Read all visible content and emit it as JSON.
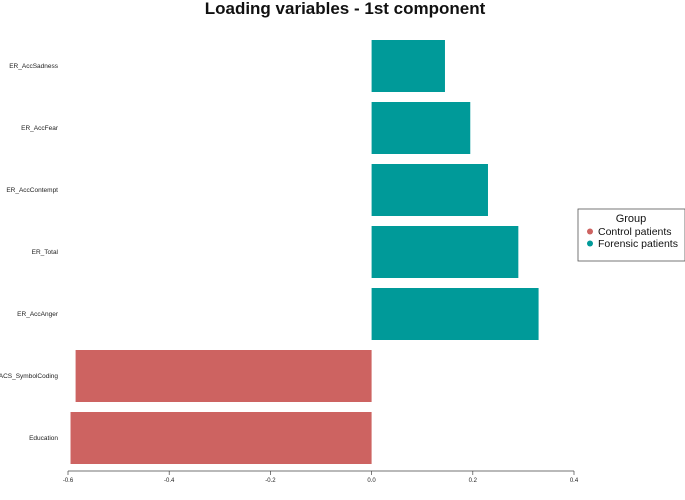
{
  "chart_data": {
    "type": "bar",
    "orientation": "horizontal",
    "title": "Loading variables - 1st component",
    "xlabel": "",
    "ylabel": "",
    "categories": [
      "ER_AccSadness",
      "ER_AccFear",
      "ER_AccContempt",
      "ER_Total",
      "ER_AccAnger",
      "BACS_SymbolCoding",
      "Education"
    ],
    "values": [
      0.145,
      0.195,
      0.23,
      0.29,
      0.33,
      -0.585,
      -0.595
    ],
    "groups": [
      "Forensic patients",
      "Forensic patients",
      "Forensic patients",
      "Forensic patients",
      "Forensic patients",
      "Control patients",
      "Control patients"
    ],
    "xlim": [
      -0.6,
      0.4
    ],
    "x_ticks": [
      "-0.6",
      "-0.4",
      "-0.2",
      "0.0",
      "0.2",
      "0.4"
    ],
    "grid": false,
    "legend": {
      "title": "Group",
      "position": "right",
      "entries": [
        {
          "label": "Control patients",
          "color": "#CD6361"
        },
        {
          "label": "Forensic patients",
          "color": "#009A99"
        }
      ]
    }
  }
}
